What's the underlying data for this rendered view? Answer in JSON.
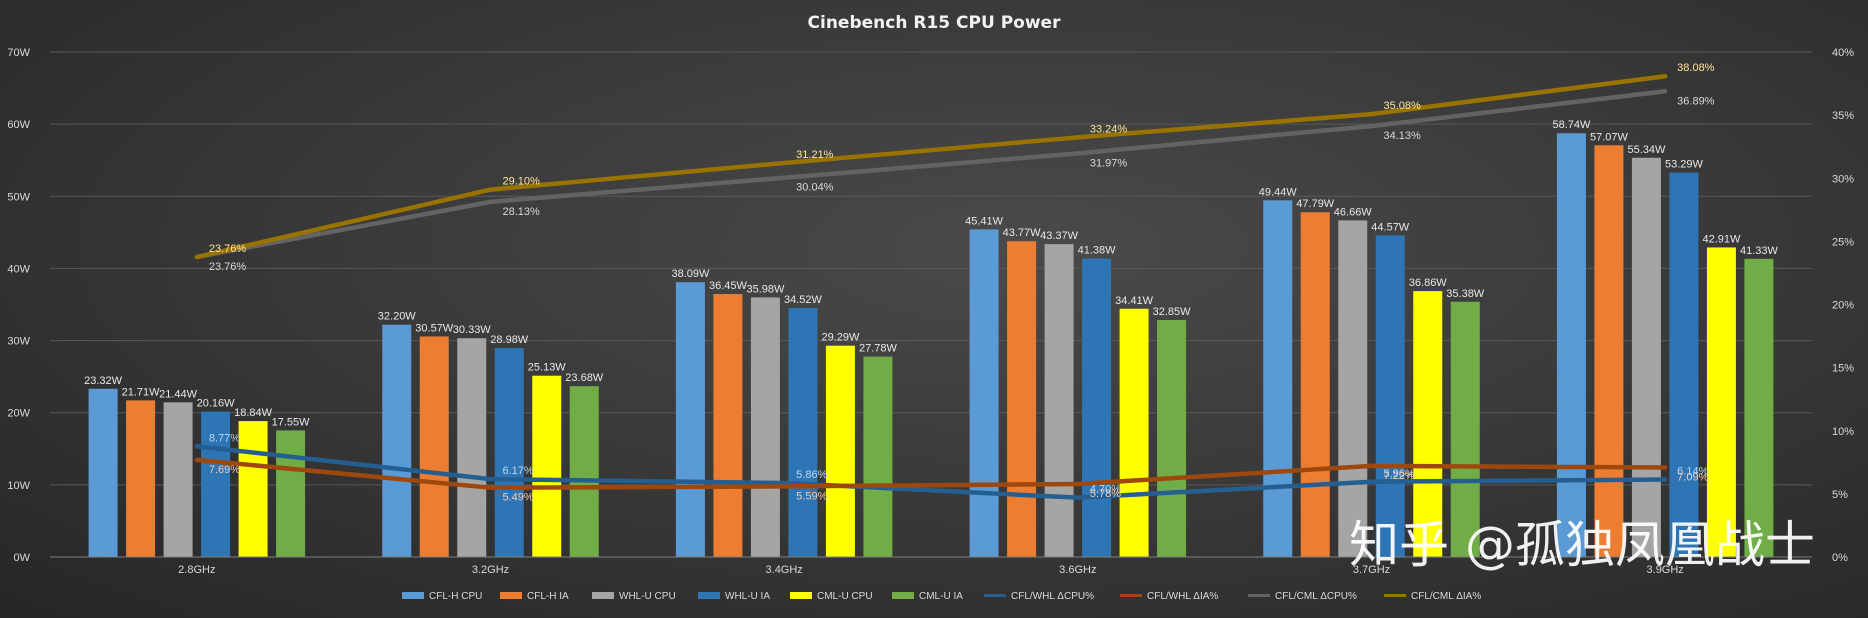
{
  "chart_data": {
    "type": "bar",
    "title": "Cinebench  R15 CPU Power",
    "categories": [
      "2.8GHz",
      "3.2GHz",
      "3.4GHz",
      "3.6GHz",
      "3.7GHz",
      "3.9GHz"
    ],
    "y_left": {
      "min": 0,
      "max": 70,
      "step": 10,
      "ticks": [
        "0W",
        "10W",
        "20W",
        "30W",
        "40W",
        "50W",
        "60W",
        "70W"
      ]
    },
    "y_right": {
      "min": 0,
      "max": 40,
      "step": 5,
      "ticks": [
        "0%",
        "5%",
        "10%",
        "15%",
        "20%",
        "25%",
        "30%",
        "35%",
        "40%"
      ]
    },
    "grid": true,
    "legend_position": "bottom",
    "bar_series": [
      {
        "name": "CFL-H CPU",
        "color": "#5b9bd5",
        "values": [
          23.32,
          32.2,
          38.09,
          45.41,
          49.44,
          58.74
        ],
        "labels": [
          "23.32W",
          "32.20W",
          "38.09W",
          "45.41W",
          "49.44W",
          "58.74W"
        ]
      },
      {
        "name": "CFL-H IA",
        "color": "#ed7d31",
        "values": [
          21.71,
          30.57,
          36.45,
          43.77,
          47.79,
          57.07
        ],
        "labels": [
          "21.71W",
          "30.57W",
          "36.45W",
          "43.77W",
          "47.79W",
          "57.07W"
        ]
      },
      {
        "name": "WHL-U CPU",
        "color": "#a5a5a5",
        "values": [
          21.44,
          30.33,
          35.98,
          43.37,
          46.66,
          55.34
        ],
        "labels": [
          "21.44W",
          "30.33W",
          "35.98W",
          "43.37W",
          "46.66W",
          "55.34W"
        ]
      },
      {
        "name": "WHL-U IA",
        "color": "#2e75b6",
        "values": [
          20.16,
          28.98,
          34.52,
          41.38,
          44.57,
          53.29
        ],
        "labels": [
          "20.16W",
          "28.98W",
          "34.52W",
          "41.38W",
          "44.57W",
          "53.29W"
        ]
      },
      {
        "name": "CML-U CPU",
        "color": "#ffff00",
        "values": [
          18.84,
          25.13,
          29.29,
          34.41,
          36.86,
          42.91
        ],
        "labels": [
          "18.84W",
          "25.13W",
          "29.29W",
          "34.41W",
          "36.86W",
          "42.91W"
        ]
      },
      {
        "name": "CML-U IA",
        "color": "#70ad47",
        "values": [
          17.55,
          23.68,
          27.78,
          32.85,
          35.38,
          41.33
        ],
        "labels": [
          "17.55W",
          "23.68W",
          "27.78W",
          "32.85W",
          "35.38W",
          "41.33W"
        ]
      }
    ],
    "line_series": [
      {
        "name": "CFL/WHL ΔCPU%",
        "color": "#255e91",
        "label_color": "#bdd7ee",
        "values": [
          8.77,
          6.17,
          5.86,
          4.7,
          5.96,
          6.14
        ],
        "labels": [
          "8.77%",
          "6.17%",
          "5.86%",
          "4.70%",
          "5.96%",
          "6.14%"
        ]
      },
      {
        "name": "CFL/WHL ΔIA%",
        "color": "#9e480e",
        "label_color": "#f8cbad",
        "values": [
          7.69,
          5.49,
          5.59,
          5.78,
          7.22,
          7.09
        ],
        "labels": [
          "7.69%",
          "5.49%",
          "5.59%",
          "5.78%",
          "7.22%",
          "7.09%"
        ]
      },
      {
        "name": "CFL/CML ΔCPU%",
        "color": "#636363",
        "label_color": "#d9d9d9",
        "values": [
          23.76,
          28.13,
          30.04,
          31.97,
          34.13,
          36.89
        ],
        "labels": [
          "23.76%",
          "28.13%",
          "30.04%",
          "31.97%",
          "34.13%",
          "36.89%"
        ]
      },
      {
        "name": "CFL/CML ΔIA%",
        "color": "#997300",
        "label_color": "#ffe699",
        "values": [
          23.76,
          29.1,
          31.21,
          33.24,
          35.08,
          38.08
        ],
        "labels": [
          "23.76%",
          "29.10%",
          "31.21%",
          "33.24%",
          "35.08%",
          "38.08%"
        ]
      }
    ]
  },
  "watermark": {
    "text": "知乎 @孤独凤凰战士"
  }
}
